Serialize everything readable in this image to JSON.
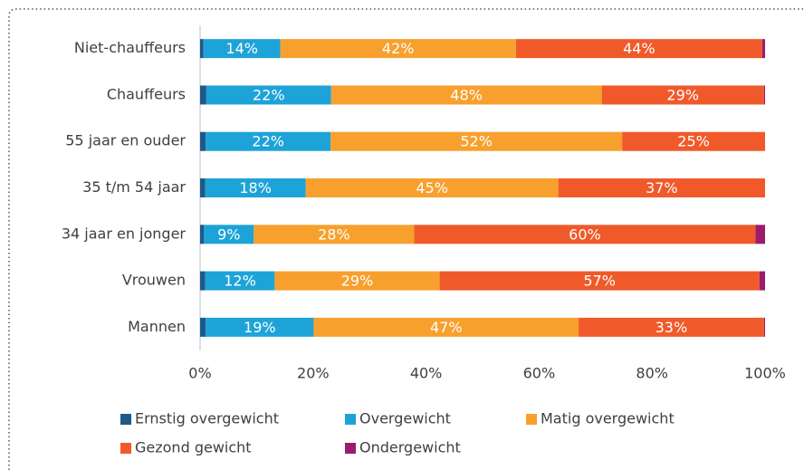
{
  "chart_data": {
    "type": "stacked-barh",
    "categories": [
      "Niet-chauffeurs",
      "Chauffeurs",
      "55 jaar en ouder",
      "35 t/m 54 jaar",
      "34 jaar en jonger",
      "Vrouwen",
      "Mannen"
    ],
    "series": [
      {
        "name": "Ernstig overgewicht",
        "color": "#1d5a8a",
        "values": [
          0.6,
          1.1,
          1.0,
          0.9,
          0.7,
          0.9,
          1.0
        ]
      },
      {
        "name": "Overgewicht",
        "color": "#1ea3d8",
        "values": [
          13.6,
          22.1,
          22.1,
          17.8,
          8.8,
          12.3,
          19.1
        ],
        "value_labels": [
          "14%",
          "22%",
          "22%",
          "18%",
          "9%",
          "12%",
          "19%"
        ]
      },
      {
        "name": "Matig overgewicht",
        "color": "#f7a02e",
        "values": [
          41.7,
          47.9,
          51.6,
          44.7,
          28.4,
          29.2,
          46.9
        ],
        "value_labels": [
          "42%",
          "48%",
          "52%",
          "45%",
          "28%",
          "29%",
          "47%"
        ]
      },
      {
        "name": "Gezond gewicht",
        "color": "#f05a2a",
        "values": [
          43.6,
          28.7,
          25.3,
          36.6,
          60.4,
          56.6,
          32.8
        ],
        "value_labels": [
          "44%",
          "29%",
          "25%",
          "37%",
          "60%",
          "57%",
          "33%"
        ]
      },
      {
        "name": "Ondergewicht",
        "color": "#9c1c6c",
        "values": [
          0.5,
          0.2,
          0.0,
          0.0,
          1.7,
          1.0,
          0.2
        ]
      }
    ],
    "xlim": [
      0,
      100
    ],
    "xticks": [
      {
        "value": 0,
        "label": "0%"
      },
      {
        "value": 20,
        "label": "20%"
      },
      {
        "value": 40,
        "label": "40%"
      },
      {
        "value": 60,
        "label": "60%"
      },
      {
        "value": 80,
        "label": "80%"
      },
      {
        "value": 100,
        "label": "100%"
      }
    ],
    "grid": false
  }
}
